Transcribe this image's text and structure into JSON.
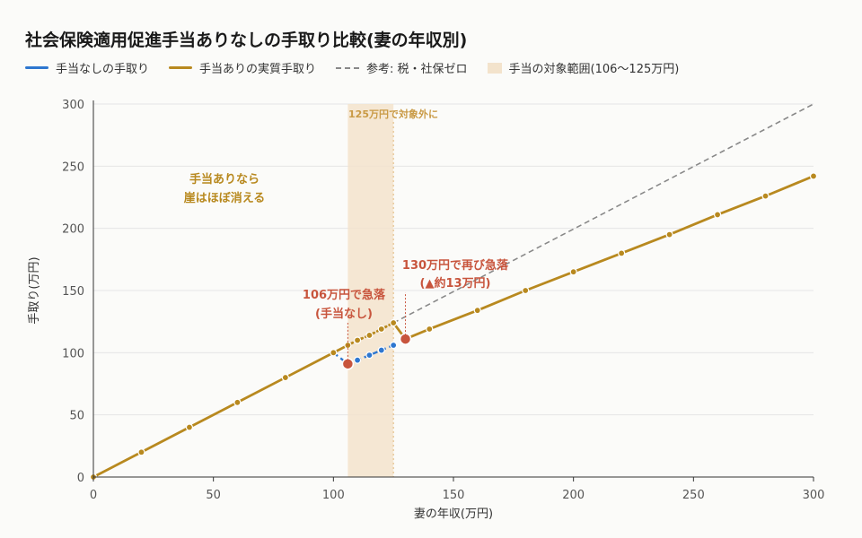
{
  "title": "社会保険適用促進手当ありなしの手取り比較(妻の年収別)",
  "legend": {
    "without": "手当なしの手取り",
    "with": "手当ありの実質手取り",
    "reference": "参考: 税・社保ゼロ",
    "range": "手当の対象範囲(106〜125万円)"
  },
  "colors": {
    "without": "#2e77d0",
    "with": "#b8891f",
    "reference": "#888888",
    "range": "#f3e3cc",
    "drop": "#c8553d",
    "grid": "#e6e6e6"
  },
  "annotations": {
    "range_top": "125万円で対象外に",
    "left_1": "手当ありなら",
    "left_2": "崖はほぼ消える",
    "drop106_1": "106万円で急落",
    "drop106_2": "(手当なし)",
    "drop130_1": "130万円で再び急落",
    "drop130_2": "(▲約13万円)"
  },
  "chart_data": {
    "type": "line",
    "xlabel": "妻の年収(万円)",
    "ylabel": "手取り(万円)",
    "xlim": [
      0,
      300
    ],
    "ylim": [
      0,
      300
    ],
    "xticks": [
      0,
      50,
      100,
      150,
      200,
      250,
      300
    ],
    "yticks": [
      0,
      50,
      100,
      150,
      200,
      250,
      300
    ],
    "grid": true,
    "legend_position": "top-left",
    "shaded_range": [
      106,
      125
    ],
    "series": [
      {
        "name": "手当ありの実質手取り",
        "key": "with",
        "points": [
          [
            0,
            0
          ],
          [
            20,
            20
          ],
          [
            40,
            40
          ],
          [
            60,
            60
          ],
          [
            80,
            80
          ],
          [
            100,
            100
          ],
          [
            106,
            106
          ],
          [
            110,
            110
          ],
          [
            115,
            114
          ],
          [
            120,
            119
          ],
          [
            125,
            124
          ],
          [
            130,
            111
          ],
          [
            140,
            119
          ],
          [
            160,
            134
          ],
          [
            180,
            150
          ],
          [
            200,
            165
          ],
          [
            220,
            180
          ],
          [
            240,
            195
          ],
          [
            260,
            211
          ],
          [
            280,
            226
          ],
          [
            300,
            242
          ]
        ]
      },
      {
        "name": "手当なしの手取り",
        "key": "without",
        "points": [
          [
            100,
            100
          ],
          [
            106,
            91
          ],
          [
            110,
            94
          ],
          [
            115,
            98
          ],
          [
            120,
            102
          ],
          [
            125,
            106
          ]
        ]
      },
      {
        "name": "参考: 税・社保ゼロ",
        "key": "reference",
        "points": [
          [
            125,
            124
          ],
          [
            300,
            300
          ]
        ]
      }
    ],
    "highlight_points": [
      [
        106,
        91
      ],
      [
        130,
        111
      ]
    ]
  }
}
